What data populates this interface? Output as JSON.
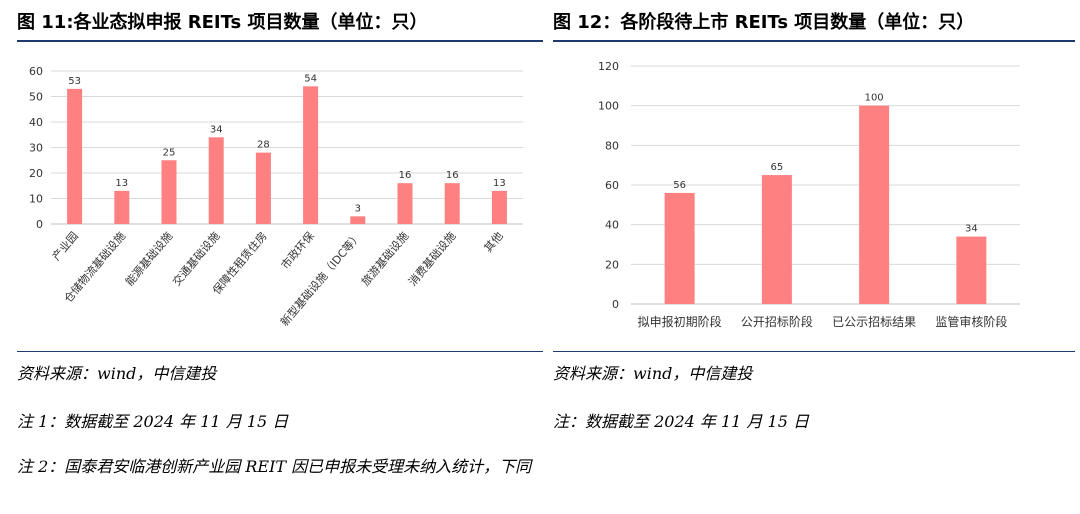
{
  "left": {
    "title": "图 11:各业态拟申报 REITs 项目数量（单位：只）",
    "source": "资料来源：wind，中信建投",
    "note1": "注 1：数据截至 2024 年 11 月 15 日",
    "note2": "注 2：国泰君安临港创新产业园 REIT 因已申报未受理未纳入统计，下同"
  },
  "right": {
    "title": "图 12：各阶段待上市 REITs 项目数量（单位：只）",
    "source": "资料来源：wind，中信建投",
    "note1": "注：数据截至 2024 年 11 月 15 日"
  },
  "chart_data": [
    {
      "type": "bar",
      "title": "图 11:各业态拟申报 REITs 项目数量（单位：只）",
      "categories": [
        "产业园",
        "仓储物流基础设施",
        "能源基础设施",
        "交通基础设施",
        "保障性租赁住房",
        "市政环保",
        "新型基础设施（IDC等）",
        "旅游基础设施",
        "消费基础设施",
        "其他"
      ],
      "values": [
        53,
        13,
        25,
        34,
        28,
        54,
        3,
        16,
        16,
        13
      ],
      "ylim": [
        0,
        60
      ],
      "yticks": [
        0,
        10,
        20,
        30,
        40,
        50,
        60
      ],
      "grid": true,
      "bar_color": "#ff8080"
    },
    {
      "type": "bar",
      "title": "图 12：各阶段待上市 REITs 项目数量（单位：只）",
      "categories": [
        "拟申报初期阶段",
        "公开招标阶段",
        "已公示招标结果",
        "监管审核阶段"
      ],
      "values": [
        56,
        65,
        100,
        34
      ],
      "ylim": [
        0,
        120
      ],
      "yticks": [
        0,
        20,
        40,
        60,
        80,
        100,
        120
      ],
      "grid": true,
      "bar_color": "#ff8080"
    }
  ]
}
